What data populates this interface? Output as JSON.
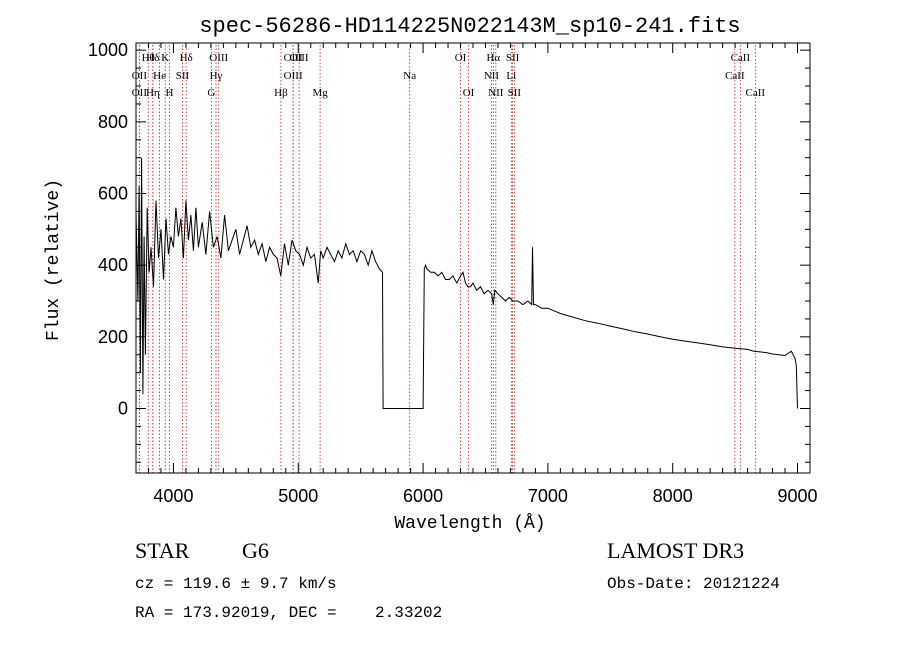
{
  "chart_data": {
    "type": "line",
    "title": "spec-56286-HD114225N022143M_sp10-241.fits",
    "xlabel": "Wavelength (Å)",
    "ylabel": "Flux (relative)",
    "xlim": [
      3700,
      9100
    ],
    "ylim": [
      -180,
      1020
    ],
    "x_ticks": [
      4000,
      5000,
      6000,
      7000,
      8000,
      9000
    ],
    "x_tick_labels": [
      "4000",
      "5000",
      "6000",
      "7000",
      "8000",
      "9000"
    ],
    "y_ticks": [
      0,
      200,
      400,
      600,
      800,
      1000
    ],
    "y_tick_labels": [
      "0",
      "200",
      "400",
      "600",
      "800",
      "1000"
    ],
    "line_color": "#000000",
    "marker_color": "#b22222",
    "series": [
      {
        "name": "spectrum",
        "x": [
          3700,
          3715,
          3725,
          3735,
          3745,
          3755,
          3765,
          3775,
          3790,
          3805,
          3820,
          3840,
          3860,
          3880,
          3900,
          3920,
          3940,
          3960,
          3980,
          4000,
          4020,
          4040,
          4060,
          4080,
          4100,
          4120,
          4140,
          4160,
          4180,
          4200,
          4230,
          4260,
          4290,
          4320,
          4350,
          4380,
          4410,
          4440,
          4470,
          4500,
          4530,
          4560,
          4590,
          4620,
          4650,
          4680,
          4710,
          4740,
          4770,
          4800,
          4830,
          4860,
          4890,
          4920,
          4950,
          4980,
          5010,
          5040,
          5070,
          5100,
          5130,
          5160,
          5180,
          5200,
          5230,
          5260,
          5290,
          5320,
          5350,
          5380,
          5410,
          5440,
          5470,
          5500,
          5530,
          5560,
          5590,
          5620,
          5650,
          5675,
          5680,
          5690,
          5700,
          6000,
          6010,
          6020,
          6030,
          6060,
          6090,
          6120,
          6150,
          6180,
          6210,
          6240,
          6270,
          6300,
          6320,
          6340,
          6360,
          6380,
          6400,
          6430,
          6460,
          6490,
          6520,
          6550,
          6563,
          6575,
          6600,
          6630,
          6660,
          6690,
          6720,
          6760,
          6800,
          6840,
          6870,
          6877,
          6885,
          6900,
          6950,
          7000,
          7100,
          7200,
          7300,
          7400,
          7500,
          7600,
          7700,
          7800,
          7900,
          8000,
          8100,
          8200,
          8300,
          8400,
          8500,
          8600,
          8650,
          8700,
          8750,
          8800,
          8850,
          8900,
          8950,
          8980,
          8990,
          9000
        ],
        "y": [
          550,
          300,
          620,
          100,
          700,
          40,
          480,
          150,
          560,
          380,
          450,
          340,
          580,
          420,
          500,
          360,
          530,
          430,
          480,
          450,
          560,
          480,
          530,
          420,
          580,
          470,
          540,
          440,
          560,
          450,
          520,
          430,
          550,
          450,
          480,
          420,
          540,
          440,
          470,
          500,
          430,
          470,
          510,
          450,
          470,
          430,
          460,
          410,
          450,
          430,
          420,
          370,
          460,
          400,
          470,
          440,
          430,
          400,
          450,
          420,
          430,
          350,
          440,
          420,
          450,
          430,
          410,
          440,
          420,
          460,
          430,
          440,
          410,
          440,
          430,
          400,
          440,
          410,
          390,
          380,
          0,
          0,
          0,
          0,
          390,
          400,
          390,
          380,
          380,
          370,
          380,
          360,
          360,
          370,
          350,
          370,
          380,
          350,
          340,
          340,
          350,
          330,
          340,
          320,
          330,
          320,
          290,
          330,
          320,
          310,
          300,
          310,
          300,
          300,
          290,
          300,
          290,
          450,
          290,
          290,
          280,
          280,
          265,
          255,
          245,
          238,
          230,
          222,
          214,
          208,
          200,
          193,
          188,
          183,
          178,
          172,
          168,
          165,
          160,
          158,
          156,
          152,
          150,
          148,
          160,
          140,
          120,
          0
        ]
      }
    ],
    "line_markers": [
      {
        "label": "Hθ",
        "x": 3798,
        "row": 0
      },
      {
        "label": "OII",
        "x": 3727,
        "row": 1
      },
      {
        "label": "OII",
        "x": 3727,
        "row": 2
      },
      {
        "label": "Hδ",
        "x": 3835,
        "row": 0
      },
      {
        "label": "He",
        "x": 3889,
        "row": 1
      },
      {
        "label": "Hη",
        "x": 3835,
        "row": 2
      },
      {
        "label": "K",
        "x": 3934,
        "row": 0
      },
      {
        "label": "H",
        "x": 3968,
        "row": 2
      },
      {
        "label": "SII",
        "x": 4072,
        "row": 1
      },
      {
        "label": "Hδ",
        "x": 4102,
        "row": 0
      },
      {
        "label": "OIII",
        "x": 4363,
        "row": 0
      },
      {
        "label": "Hγ",
        "x": 4341,
        "row": 1
      },
      {
        "label": "G",
        "x": 4304,
        "row": 2
      },
      {
        "label": "Hβ",
        "x": 4861,
        "row": 2
      },
      {
        "label": "OIII",
        "x": 4959,
        "row": 0
      },
      {
        "label": "OIII",
        "x": 4959,
        "row": 1
      },
      {
        "label": "OIII",
        "x": 5007,
        "row": 0
      },
      {
        "label": "Mg",
        "x": 5175,
        "row": 2
      },
      {
        "label": "Na",
        "x": 5893,
        "row": 1
      },
      {
        "label": "OI",
        "x": 6300,
        "row": 0
      },
      {
        "label": "OI",
        "x": 6364,
        "row": 2
      },
      {
        "label": "Hα",
        "x": 6563,
        "row": 0
      },
      {
        "label": "NII",
        "x": 6548,
        "row": 1
      },
      {
        "label": "NII",
        "x": 6583,
        "row": 2
      },
      {
        "label": "SII",
        "x": 6717,
        "row": 0
      },
      {
        "label": "Li",
        "x": 6707,
        "row": 1
      },
      {
        "label": "SII",
        "x": 6731,
        "row": 2
      },
      {
        "label": "CaII",
        "x": 8542,
        "row": 0
      },
      {
        "label": "CaII",
        "x": 8498,
        "row": 1
      },
      {
        "label": "CaII",
        "x": 8662,
        "row": 2
      }
    ]
  },
  "info": {
    "object_class": "STAR",
    "subclass": "G6",
    "survey": "LAMOST DR3",
    "redshift_line": "cz = 119.6 ± 9.7 km/s",
    "obs_date_line": "Obs-Date: 20121224",
    "coords_line": "RA = 173.92019, DEC =    2.33202"
  }
}
